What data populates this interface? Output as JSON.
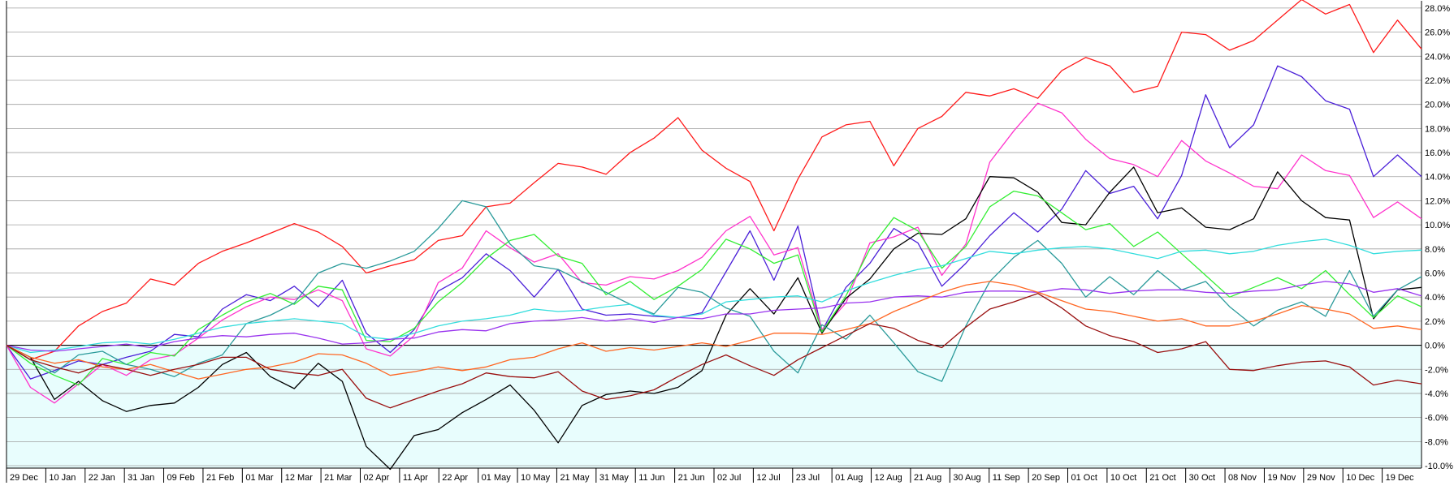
{
  "chart_data": {
    "type": "line",
    "x_labels": [
      "29 Dec",
      "10 Jan",
      "22 Jan",
      "31 Jan",
      "09 Feb",
      "21 Feb",
      "01 Mar",
      "12 Mar",
      "21 Mar",
      "02 Apr",
      "11 Apr",
      "22 Apr",
      "01 May",
      "10 May",
      "21 May",
      "31 May",
      "11 Jun",
      "21 Jun",
      "02 Jul",
      "12 Jul",
      "23 Jul",
      "01 Aug",
      "12 Aug",
      "21 Aug",
      "30 Aug",
      "11 Sep",
      "20 Sep",
      "01 Oct",
      "10 Oct",
      "21 Oct",
      "30 Oct",
      "08 Nov",
      "19 Nov",
      "29 Nov",
      "10 Dec",
      "19 Dec"
    ],
    "y_ticks": [
      "28.0%",
      "26.0%",
      "24.0%",
      "22.0%",
      "20.0%",
      "18.0%",
      "16.0%",
      "14.0%",
      "12.0%",
      "10.0%",
      "8.0%",
      "6.0%",
      "4.0%",
      "2.0%",
      "0.0%",
      "-2.0%",
      "-4.0%",
      "-6.0%",
      "-8.0%",
      "-10.0%"
    ],
    "ylim": [
      -10.2,
      28.6
    ],
    "grid": true,
    "zero_line": true,
    "background": "#e8fdfd",
    "series": [
      {
        "color": "#ff1a1a",
        "values": [
          0,
          -1.2,
          -0.5,
          1.6,
          2.8,
          3.5,
          5.5,
          5.0,
          6.8,
          7.8,
          8.5,
          9.3,
          10.1,
          9.4,
          8.2,
          6.0,
          6.6,
          7.1,
          8.7,
          9.1,
          11.5,
          11.8,
          13.5,
          15.1,
          14.8,
          14.2,
          16.0,
          17.2,
          18.9,
          16.2,
          14.7,
          13.6,
          9.5,
          13.8,
          17.3,
          18.3,
          18.6,
          14.9,
          18.0,
          19.0,
          21.0,
          20.7,
          21.3,
          20.5,
          22.8,
          23.9,
          23.2,
          21.0,
          21.5,
          26.0,
          25.8,
          24.5,
          25.3,
          27.0,
          28.7,
          27.5,
          28.3,
          24.3,
          27.0,
          24.6
        ]
      },
      {
        "color": "#4a1fd8",
        "values": [
          0,
          -2.8,
          -2.1,
          -1.3,
          -1.6,
          -1.0,
          -0.5,
          0.9,
          0.7,
          3.0,
          4.2,
          3.7,
          4.9,
          3.2,
          5.4,
          1.0,
          -0.6,
          1.3,
          4.5,
          5.6,
          7.6,
          6.2,
          4.0,
          6.3,
          3.0,
          2.5,
          2.6,
          2.4,
          2.3,
          2.7,
          6.1,
          9.5,
          5.4,
          9.9,
          1.2,
          4.8,
          6.8,
          9.7,
          8.5,
          4.9,
          6.8,
          9.1,
          11.0,
          9.4,
          11.3,
          14.5,
          12.6,
          13.2,
          10.5,
          14.1,
          20.8,
          16.4,
          18.3,
          23.2,
          22.3,
          20.3,
          19.6,
          14.0,
          15.8,
          14.0
        ]
      },
      {
        "color": "#ff33cc",
        "values": [
          0,
          -3.5,
          -4.8,
          -3.2,
          -1.6,
          -2.5,
          -1.2,
          -0.8,
          0.6,
          2.1,
          3.2,
          4.0,
          3.8,
          4.6,
          3.7,
          -0.3,
          -0.9,
          0.8,
          5.2,
          6.4,
          9.5,
          8.1,
          6.9,
          7.6,
          5.2,
          5.0,
          5.7,
          5.5,
          6.2,
          7.3,
          9.5,
          10.7,
          7.5,
          8.1,
          1.3,
          3.5,
          8.5,
          9.0,
          9.8,
          5.8,
          8.4,
          15.2,
          17.8,
          20.1,
          19.3,
          17.1,
          15.5,
          15.0,
          14.0,
          17.0,
          15.3,
          14.3,
          13.2,
          13.0,
          15.8,
          14.5,
          14.1,
          10.6,
          11.9,
          10.5
        ]
      },
      {
        "color": "#000000",
        "values": [
          0,
          -1.0,
          -4.5,
          -3.0,
          -4.6,
          -5.5,
          -5.0,
          -4.8,
          -3.5,
          -1.6,
          -0.6,
          -2.6,
          -3.6,
          -1.5,
          -3.0,
          -8.4,
          -10.3,
          -7.5,
          -7.0,
          -5.6,
          -4.5,
          -3.3,
          -5.4,
          -8.1,
          -5.0,
          -4.1,
          -3.8,
          -4.0,
          -3.5,
          -2.1,
          2.5,
          4.7,
          2.6,
          5.6,
          1.0,
          3.9,
          5.5,
          8.0,
          9.3,
          9.2,
          10.5,
          14.0,
          13.9,
          12.7,
          10.2,
          10.0,
          12.7,
          14.8,
          11.0,
          11.4,
          9.8,
          9.6,
          10.5,
          14.4,
          12.0,
          10.6,
          10.4,
          2.2,
          4.6,
          4.8
        ]
      },
      {
        "color": "#33ee33",
        "values": [
          0,
          -1.5,
          -2.5,
          -3.3,
          -1.1,
          -1.6,
          -0.6,
          -0.9,
          1.3,
          2.5,
          3.6,
          4.3,
          3.4,
          4.9,
          4.6,
          0.4,
          0.3,
          1.4,
          3.6,
          5.2,
          7.2,
          8.7,
          9.2,
          7.4,
          6.8,
          4.2,
          5.3,
          3.8,
          4.9,
          6.3,
          8.8,
          8.0,
          6.8,
          7.5,
          1.1,
          4.1,
          8.0,
          10.6,
          9.5,
          6.4,
          8.2,
          11.5,
          12.8,
          12.4,
          11.0,
          9.6,
          10.1,
          8.2,
          9.4,
          7.6,
          5.8,
          4.0,
          4.8,
          5.6,
          4.7,
          6.2,
          4.2,
          2.3,
          4.1,
          3.2
        ]
      },
      {
        "color": "#2a9a9a",
        "values": [
          0,
          -1.2,
          -2.3,
          -0.8,
          -0.5,
          -1.6,
          -2.0,
          -2.6,
          -1.5,
          -0.8,
          1.8,
          2.5,
          3.5,
          6.0,
          6.8,
          6.4,
          7.0,
          7.8,
          9.7,
          12.0,
          11.5,
          8.4,
          6.6,
          6.3,
          5.3,
          4.4,
          3.4,
          2.6,
          4.8,
          4.4,
          3.1,
          2.4,
          -0.5,
          -2.3,
          1.7,
          0.5,
          2.5,
          0.2,
          -2.2,
          -3.0,
          1.6,
          5.3,
          7.3,
          8.7,
          6.8,
          4.0,
          5.7,
          4.2,
          6.2,
          4.6,
          5.3,
          3.2,
          1.6,
          2.9,
          3.6,
          2.4,
          6.2,
          2.4,
          4.6,
          5.7
        ]
      },
      {
        "color": "#33dddd",
        "values": [
          0,
          -0.6,
          -0.4,
          -0.1,
          0.2,
          0.3,
          0.1,
          0.5,
          1.0,
          1.5,
          1.8,
          2.0,
          2.2,
          2.0,
          1.8,
          0.7,
          0.5,
          1.0,
          1.6,
          2.0,
          2.2,
          2.5,
          3.0,
          2.8,
          2.9,
          3.2,
          3.4,
          2.5,
          2.3,
          2.6,
          3.6,
          3.8,
          4.0,
          4.1,
          3.6,
          4.5,
          5.2,
          5.8,
          6.3,
          6.6,
          7.2,
          7.8,
          7.6,
          7.9,
          8.1,
          8.2,
          8.0,
          7.6,
          7.2,
          7.8,
          7.9,
          7.6,
          7.8,
          8.3,
          8.6,
          8.8,
          8.3,
          7.6,
          7.8,
          7.9
        ]
      },
      {
        "color": "#9933ee",
        "values": [
          0,
          -0.4,
          -0.5,
          -0.3,
          -0.1,
          0.1,
          -0.2,
          0.3,
          0.6,
          0.8,
          0.7,
          0.9,
          1.0,
          0.6,
          0.1,
          0.2,
          0.5,
          0.6,
          1.1,
          1.3,
          1.2,
          1.8,
          2.0,
          2.1,
          2.3,
          2.0,
          2.2,
          1.9,
          2.3,
          2.2,
          2.6,
          2.6,
          2.9,
          3.0,
          3.1,
          3.5,
          3.6,
          4.0,
          4.1,
          4.0,
          4.4,
          4.5,
          4.5,
          4.4,
          4.7,
          4.6,
          4.3,
          4.5,
          4.6,
          4.6,
          4.4,
          4.3,
          4.5,
          4.6,
          5.0,
          5.3,
          5.1,
          4.4,
          4.7,
          4.1
        ]
      },
      {
        "color": "#ff6622",
        "values": [
          0,
          -1.0,
          -1.5,
          -1.2,
          -1.8,
          -2.0,
          -1.6,
          -2.2,
          -2.8,
          -2.4,
          -2.0,
          -1.8,
          -1.4,
          -0.7,
          -0.8,
          -1.5,
          -2.5,
          -2.2,
          -1.8,
          -2.1,
          -1.8,
          -1.2,
          -1.0,
          -0.3,
          0.2,
          -0.5,
          -0.2,
          -0.4,
          -0.1,
          0.2,
          -0.1,
          0.4,
          1.0,
          1.0,
          0.9,
          1.3,
          1.8,
          2.8,
          3.6,
          4.4,
          5.0,
          5.3,
          5.0,
          4.4,
          3.7,
          3.0,
          2.8,
          2.4,
          2.0,
          2.2,
          1.6,
          1.6,
          2.0,
          2.6,
          3.3,
          3.0,
          2.6,
          1.4,
          1.6,
          1.3
        ]
      },
      {
        "color": "#990f0f",
        "values": [
          0,
          -1.2,
          -1.8,
          -2.3,
          -1.6,
          -2.0,
          -2.5,
          -2.0,
          -1.6,
          -1.0,
          -1.0,
          -2.0,
          -2.3,
          -2.5,
          -2.0,
          -4.4,
          -5.2,
          -4.5,
          -3.8,
          -3.2,
          -2.3,
          -2.6,
          -2.7,
          -2.2,
          -3.8,
          -4.5,
          -4.2,
          -3.7,
          -2.6,
          -1.6,
          -0.8,
          -1.7,
          -2.5,
          -1.2,
          -0.2,
          0.8,
          1.8,
          1.4,
          0.4,
          -0.2,
          1.5,
          3.0,
          3.6,
          4.3,
          3.1,
          1.6,
          0.8,
          0.3,
          -0.6,
          -0.3,
          0.3,
          -2.0,
          -2.1,
          -1.7,
          -1.4,
          -1.3,
          -1.8,
          -3.3,
          -2.9,
          -3.2
        ]
      }
    ]
  }
}
